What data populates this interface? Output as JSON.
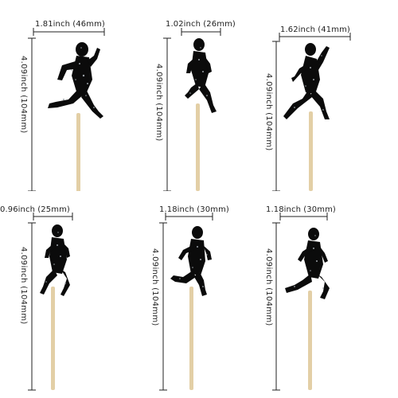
{
  "toppers": [
    {
      "width": "1.81inch (46mm)",
      "height": "4.09inch (104mm)",
      "pose": "runner-sprint-right"
    },
    {
      "width": "1.02inch (26mm)",
      "height": "4.09inch (104mm)",
      "pose": "runner-stride-right"
    },
    {
      "width": "1.62inch (41mm)",
      "height": "4.09inch (104mm)",
      "pose": "runner-reach-left"
    },
    {
      "width": "0.96inch (25mm)",
      "height": "4.09inch (104mm)",
      "pose": "runner-jog-right"
    },
    {
      "width": "1.18inch (30mm)",
      "height": "4.09inch (104mm)",
      "pose": "runner-stride-left"
    },
    {
      "width": "1.18inch (30mm)",
      "height": "4.09inch (104mm)",
      "pose": "runner-kick-left"
    }
  ],
  "colors": {
    "silhouette": "#0b0b0b",
    "glitter": "#9aa0a6",
    "stick": "#e3cfa6",
    "dimension_line": "#222222"
  }
}
